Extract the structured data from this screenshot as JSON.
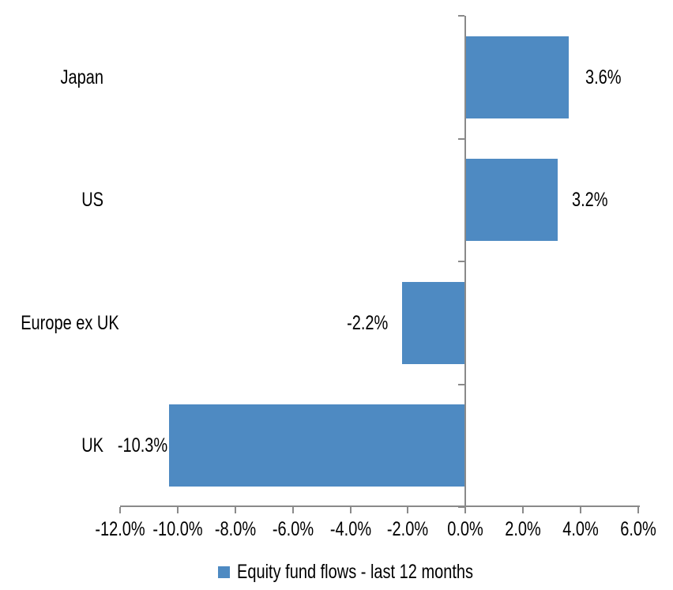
{
  "chart_data": {
    "type": "bar",
    "orientation": "horizontal",
    "categories": [
      "Japan",
      "US",
      "Europe ex UK",
      "UK"
    ],
    "series": [
      {
        "name": "Equity fund flows - last 12 months",
        "values": [
          3.6,
          3.2,
          -2.2,
          -10.3
        ],
        "data_labels": [
          "3.6%",
          "3.2%",
          "-2.2%",
          "-10.3%"
        ]
      }
    ],
    "x_axis": {
      "min": -12,
      "max": 6,
      "step": 2,
      "tick_labels": [
        "-12.0%",
        "-10.0%",
        "-8.0%",
        "-6.0%",
        "-4.0%",
        "-2.0%",
        "0.0%",
        "2.0%",
        "4.0%",
        "6.0%"
      ]
    },
    "grid": false,
    "legend": {
      "position": "bottom",
      "entries": [
        {
          "label": "Equity fund flows - last 12 months",
          "swatch_color": "#4E8AC2"
        }
      ]
    },
    "colors": {
      "bar": "#4E8AC2",
      "axis": "#8A8A8A",
      "text": "#000000",
      "background": "#FFFFFF"
    }
  }
}
